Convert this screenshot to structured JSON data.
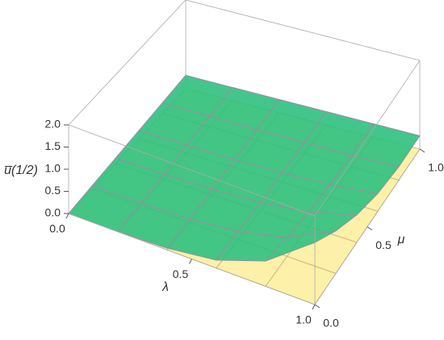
{
  "chart_data": {
    "type": "surface3d",
    "xlabel": "λ",
    "ylabel": "μ",
    "zlabel": "u̅(1/2)",
    "x": [
      0,
      0.2,
      0.4,
      0.6,
      0.8,
      1
    ],
    "y": [
      0,
      0.2,
      0.4,
      0.6,
      0.8,
      1
    ],
    "xlim": [
      0,
      1
    ],
    "ylim": [
      0,
      1
    ],
    "zlim": [
      0,
      2
    ],
    "xticks": [
      {
        "value": 0,
        "label": "0.0"
      },
      {
        "value": 0.5,
        "label": "0.5"
      },
      {
        "value": 1,
        "label": "1.0"
      }
    ],
    "yticks": [
      {
        "value": 0,
        "label": "0.0"
      },
      {
        "value": 0.5,
        "label": "0.5"
      },
      {
        "value": 1,
        "label": "1.0"
      }
    ],
    "zticks": [
      {
        "value": 0,
        "label": "0.0"
      },
      {
        "value": 0.5,
        "label": "0.5"
      },
      {
        "value": 1,
        "label": "1.0"
      },
      {
        "value": 1.5,
        "label": "1.5"
      },
      {
        "value": 2,
        "label": "2.0"
      }
    ],
    "series": [
      {
        "color": "#fdf0a8",
        "mesh": "#c9b98a",
        "z": [
          [
            0,
            0,
            0,
            0,
            0,
            0
          ],
          [
            0,
            0,
            0,
            0,
            0,
            0
          ],
          [
            0,
            0,
            0,
            0,
            0,
            0
          ],
          [
            0,
            0,
            0,
            0,
            0,
            0
          ],
          [
            0,
            0,
            0,
            0,
            0,
            0
          ],
          [
            0,
            0,
            0,
            0,
            0,
            0
          ]
        ]
      },
      {
        "color": "#2fc080",
        "mesh": "#9a8fa0",
        "z": [
          [
            0,
            0.06,
            0.12,
            0.18,
            0.24,
            0.3
          ],
          [
            0,
            0.06,
            0.12,
            0.18,
            0.24,
            0.3
          ],
          [
            0.04,
            0.08,
            0.13,
            0.18,
            0.24,
            0.3
          ],
          [
            0.18,
            0.18,
            0.19,
            0.21,
            0.25,
            0.3
          ],
          [
            0.57,
            0.43,
            0.33,
            0.27,
            0.26,
            0.3
          ],
          [
            1.4,
            0.96,
            0.62,
            0.4,
            0.3,
            0.3
          ]
        ]
      }
    ]
  }
}
